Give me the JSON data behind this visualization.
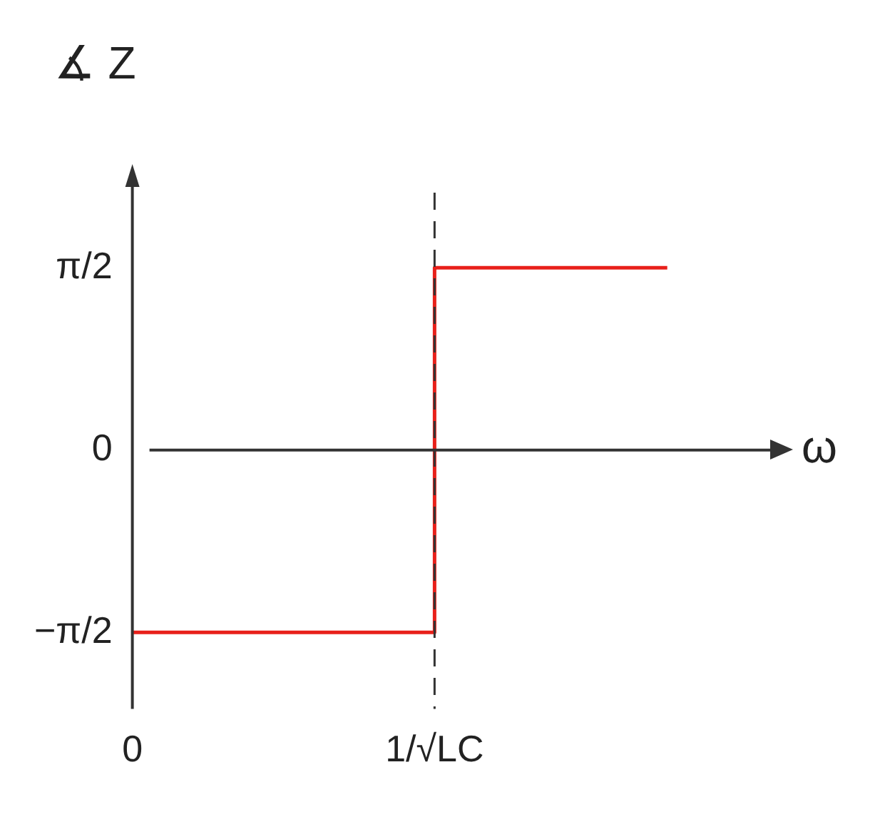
{
  "chart_data": {
    "type": "step",
    "xlabel": "ω",
    "ylabel": "∡ Z",
    "x": [
      0,
      1,
      1.77
    ],
    "series": [
      {
        "color": "#e8201a",
        "values": [
          -1.57,
          1.57,
          1.57
        ]
      }
    ],
    "xlim": [
      0,
      2.12
    ],
    "xticks": [
      {
        "value": 0,
        "label": "0"
      },
      {
        "value": 1,
        "label": "1/√LC"
      }
    ],
    "ylim": [
      -2.23,
      2.34
    ],
    "yticks": [
      {
        "value": -1.5708,
        "label": "−π/2"
      },
      {
        "value": 0,
        "label": "0"
      },
      {
        "value": 1.5708,
        "label": "π/2"
      }
    ],
    "ref_lines": [
      {
        "axis": "x",
        "value": 1,
        "label": null,
        "line_style": "dashed",
        "color": "#333333"
      }
    ],
    "grid": false,
    "legend": false
  }
}
